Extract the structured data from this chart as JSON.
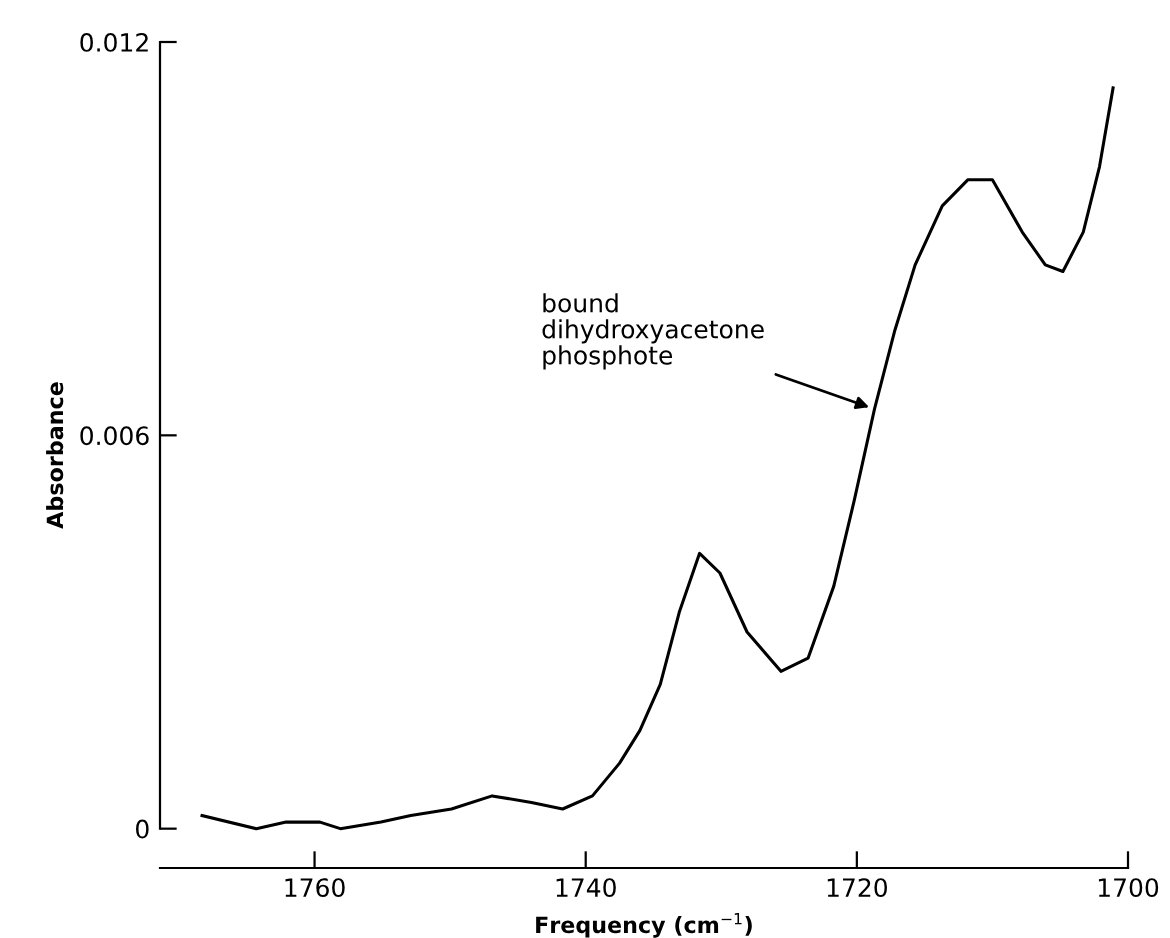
{
  "chart_data": {
    "type": "line",
    "xlabel": "Frequency (cm$^{−1}$)",
    "ylabel": "Absorbance",
    "x": [
      1768.3,
      1764.3,
      1762.1,
      1759.6,
      1758.1,
      1755.1,
      1752.9,
      1749.9,
      1746.9,
      1744.0,
      1741.7,
      1739.5,
      1737.5,
      1736.0,
      1734.5,
      1733.1,
      1731.6,
      1730.1,
      1728.1,
      1725.6,
      1723.6,
      1721.7,
      1720.2,
      1718.7,
      1717.2,
      1715.7,
      1713.7,
      1711.8,
      1710.0,
      1707.8,
      1706.1,
      1704.8,
      1703.3,
      1702.1,
      1701.1
    ],
    "series": [
      {
        "color": "#000000",
        "values": [
          0.0002,
          0,
          0.0001,
          0.0001,
          0,
          0.0001,
          0.0002,
          0.0003,
          0.0005,
          0.0004,
          0.0003,
          0.0005,
          0.001,
          0.0015,
          0.0022,
          0.0033,
          0.0042,
          0.0039,
          0.003,
          0.0024,
          0.0026,
          0.0037,
          0.005,
          0.0064,
          0.0076,
          0.0086,
          0.0095,
          0.0099,
          0.0099,
          0.0091,
          0.0086,
          0.0085,
          0.0091,
          0.0101,
          0.0113
        ]
      }
    ],
    "xlim": [
      1771.4,
      1700
    ],
    "ylim": [
      -0.0006,
      0.012
    ],
    "xticks": [
      1760,
      1740,
      1720,
      1700
    ],
    "yticks": [
      0,
      0.006,
      0.012
    ],
    "grid": false,
    "legend": false,
    "marker": "none",
    "line_style": "solid",
    "annotations": [
      {
        "text": "bound\ndihydroxyacetone\nphosphote",
        "x": 1718.7,
        "y": 0.0064
      }
    ]
  }
}
